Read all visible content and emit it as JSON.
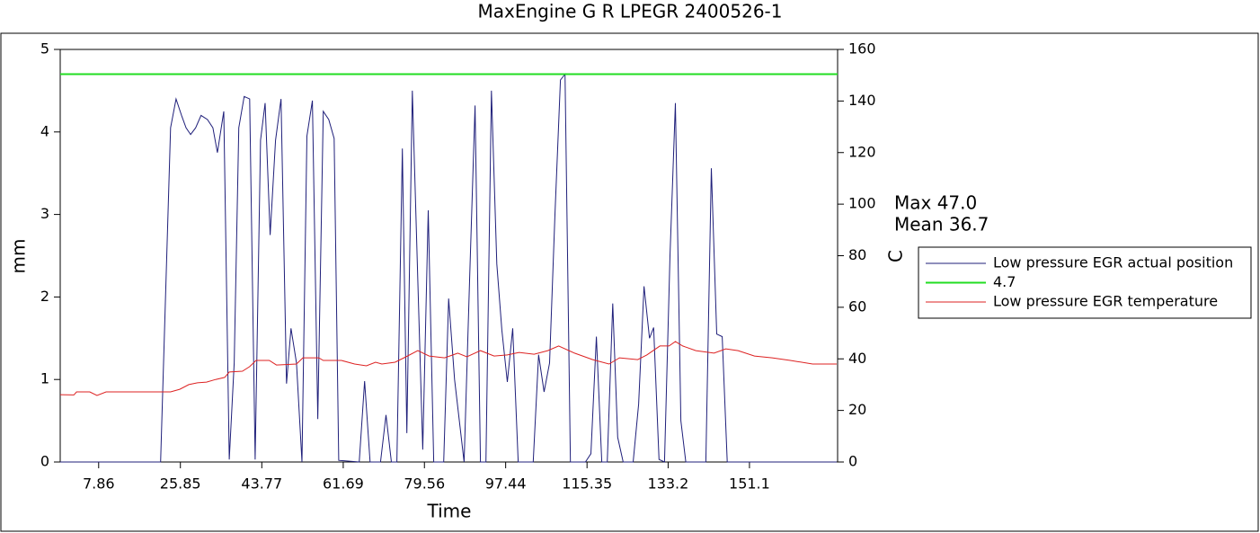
{
  "chart_data": {
    "type": "line",
    "title": "MaxEngine G R  LPEGR 2400526-1",
    "xlabel": "Time",
    "ylabel": "mm",
    "y2label": "C",
    "annotations": [
      "Max  47.0",
      "Mean  36.7"
    ],
    "xlim": [
      -0.6,
      170.5
    ],
    "xticks": [
      7.86,
      25.85,
      43.77,
      61.69,
      79.56,
      97.44,
      115.35,
      133.2,
      151.1
    ],
    "ylim": [
      0,
      5
    ],
    "yticks": [
      0,
      1,
      2,
      3,
      4,
      5
    ],
    "y2lim": [
      0,
      160
    ],
    "y2ticks": [
      0,
      20,
      40,
      60,
      80,
      100,
      120,
      140,
      160
    ],
    "legend": "right",
    "series": [
      {
        "name": "Low pressure EGR actual position",
        "color": "#1f1f7a",
        "axis": "y",
        "x": [
          -0.6,
          21.5,
          23.7,
          24.9,
          26.1,
          27.1,
          28.1,
          29.2,
          30.4,
          31.8,
          33.0,
          34.0,
          35.4,
          36.6,
          37.7,
          38.7,
          39.9,
          41.1,
          42.3,
          43.5,
          44.5,
          45.6,
          46.8,
          48.0,
          49.2,
          50.2,
          51.4,
          52.6,
          53.7,
          54.9,
          56.1,
          57.3,
          58.5,
          59.7,
          60.7,
          65.2,
          66.4,
          67.6,
          69.9,
          71.1,
          72.3,
          73.5,
          74.7,
          75.7,
          76.9,
          78.1,
          79.2,
          80.4,
          81.6,
          83.8,
          84.9,
          86.2,
          88.3,
          89.5,
          90.7,
          91.9,
          93.1,
          94.3,
          95.5,
          96.6,
          97.8,
          99.0,
          100.2,
          103.5,
          104.7,
          105.9,
          107.1,
          108.3,
          109.5,
          110.5,
          111.7,
          115.0,
          116.2,
          117.4,
          118.6,
          119.8,
          121.0,
          122.1,
          123.3,
          125.5,
          126.7,
          127.9,
          129.1,
          130.0,
          131.2,
          132.4,
          133.6,
          134.8,
          136.0,
          137.1,
          141.5,
          142.7,
          143.9,
          145.1,
          146.2,
          170.3
        ],
        "values": [
          0,
          0,
          4.05,
          4.4,
          4.2,
          4.05,
          3.97,
          4.05,
          4.2,
          4.15,
          4.05,
          3.75,
          4.25,
          0.03,
          1.2,
          4.05,
          4.43,
          4.4,
          0.03,
          3.9,
          4.35,
          2.75,
          3.9,
          4.4,
          0.95,
          1.62,
          1.2,
          0,
          3.95,
          4.38,
          0.52,
          4.25,
          4.15,
          3.92,
          0.02,
          0,
          0.98,
          0,
          0,
          0.57,
          0,
          0,
          3.8,
          0.35,
          4.5,
          2.2,
          0.15,
          3.05,
          0,
          0,
          1.98,
          1.0,
          0,
          2.2,
          4.32,
          0,
          0,
          4.5,
          2.4,
          1.6,
          0.97,
          1.62,
          0,
          0,
          1.3,
          0.85,
          1.2,
          3.0,
          4.63,
          4.7,
          0,
          0,
          0.1,
          1.52,
          0,
          0,
          1.92,
          0.3,
          0,
          0,
          0.7,
          2.13,
          1.5,
          1.63,
          0.03,
          0,
          2.5,
          4.35,
          0.5,
          0,
          0,
          3.56,
          1.55,
          1.52,
          0,
          0
        ]
      },
      {
        "name": "4.7",
        "color": "#22dd22",
        "axis": "y",
        "x": [
          -0.6,
          170.5
        ],
        "values": [
          4.7,
          4.7
        ]
      },
      {
        "name": "Low pressure EGR temperature",
        "color": "#dd2222",
        "axis": "y2",
        "x": [
          -0.6,
          2.4,
          3.0,
          5.9,
          7.5,
          9.5,
          23.7,
          25.7,
          27.7,
          29.6,
          31.6,
          33.6,
          35.6,
          36.6,
          39.5,
          41.1,
          42.5,
          45.4,
          47.0,
          51.4,
          52.8,
          56.3,
          57.3,
          61.3,
          64.2,
          66.8,
          68.8,
          70.2,
          73.1,
          75.5,
          78.1,
          80.6,
          84.0,
          86.9,
          88.9,
          91.9,
          94.9,
          97.8,
          100.4,
          103.7,
          106.7,
          109.1,
          112.6,
          116.6,
          120.2,
          122.5,
          126.5,
          128.5,
          131.4,
          133.4,
          134.8,
          136.4,
          139.3,
          143.3,
          145.9,
          148.6,
          152.2,
          156.1,
          160.1,
          165.0,
          170.3
        ],
        "values": [
          26.1,
          26.0,
          27.2,
          27.2,
          25.8,
          27.2,
          27.2,
          28.2,
          30.0,
          30.7,
          31.0,
          32.0,
          32.8,
          34.9,
          35.2,
          37.0,
          39.4,
          39.4,
          37.6,
          38.0,
          40.4,
          40.4,
          39.4,
          39.4,
          38.0,
          37.3,
          38.7,
          38.0,
          38.7,
          40.8,
          43.2,
          41.1,
          40.4,
          42.2,
          40.8,
          43.2,
          41.1,
          41.5,
          42.5,
          41.8,
          43.2,
          45.0,
          42.2,
          39.7,
          38.0,
          40.4,
          39.7,
          41.5,
          45.0,
          45.0,
          46.7,
          45.0,
          43.2,
          42.2,
          43.9,
          43.2,
          41.1,
          40.4,
          39.4,
          38.0,
          38.0
        ]
      }
    ]
  }
}
